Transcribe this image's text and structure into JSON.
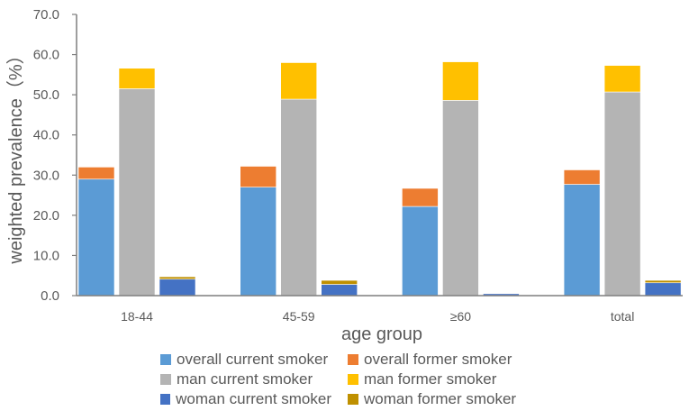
{
  "chart_data": {
    "type": "bar",
    "stacked_pairs": true,
    "title": "",
    "xlabel": "age group",
    "ylabel": "weighted prevalence（%）",
    "ylim": [
      0,
      70
    ],
    "yticks": [
      "0.0",
      "10.0",
      "20.0",
      "30.0",
      "40.0",
      "50.0",
      "60.0",
      "70.0"
    ],
    "grid": false,
    "legend_position": "bottom",
    "categories": [
      "18-44",
      "45-59",
      "≥60",
      "total"
    ],
    "series": [
      {
        "name": "overall current smoker",
        "stack": "overall",
        "color": "#5B9BD5",
        "values": [
          29.0,
          27.0,
          22.2,
          27.7
        ]
      },
      {
        "name": "overall former smoker",
        "stack": "overall",
        "color": "#ED7D31",
        "values": [
          3.0,
          5.2,
          4.5,
          3.6
        ]
      },
      {
        "name": "man current smoker",
        "stack": "man",
        "color": "#B4B4B4",
        "values": [
          51.5,
          48.9,
          48.6,
          50.7
        ]
      },
      {
        "name": "man former smoker",
        "stack": "man",
        "color": "#FFC000",
        "values": [
          5.1,
          9.1,
          9.6,
          6.6
        ]
      },
      {
        "name": "woman current smoker",
        "stack": "woman",
        "color": "#4472C4",
        "values": [
          4.1,
          2.8,
          0.5,
          3.2
        ]
      },
      {
        "name": "woman former smoker",
        "stack": "woman",
        "color": "#BF9000",
        "values": [
          0.6,
          1.0,
          0.1,
          0.6
        ]
      }
    ]
  },
  "legend": {
    "items": [
      {
        "label": "overall current smoker",
        "color": "#5B9BD5"
      },
      {
        "label": "overall former smoker",
        "color": "#ED7D31"
      },
      {
        "label": "man current smoker",
        "color": "#B4B4B4"
      },
      {
        "label": "man former smoker",
        "color": "#FFC000"
      },
      {
        "label": "woman current smoker",
        "color": "#4472C4"
      },
      {
        "label": "woman former smoker",
        "color": "#BF9000"
      }
    ]
  }
}
